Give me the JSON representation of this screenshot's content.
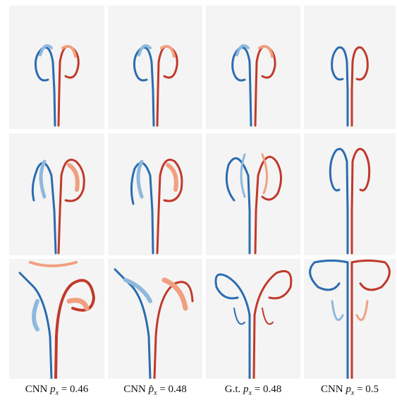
{
  "colors": {
    "background": "#f4f4f4",
    "positive": "#c0392b",
    "negative": "#2b6cb0",
    "positive_light": "#f0a080",
    "negative_light": "#8fb8dc"
  },
  "columns": [
    {
      "prefix": "CNN",
      "symbol": "p",
      "hat": false,
      "sub": "x",
      "value": "0.46"
    },
    {
      "prefix": "CNN",
      "symbol": "p",
      "hat": true,
      "sub": "x",
      "value": "0.48"
    },
    {
      "prefix": "G.t.",
      "symbol": "p",
      "hat": false,
      "sub": "x",
      "value": "0.48"
    },
    {
      "prefix": "CNN",
      "symbol": "p",
      "hat": false,
      "sub": "x",
      "value": "0.5"
    }
  ],
  "rows": 3
}
